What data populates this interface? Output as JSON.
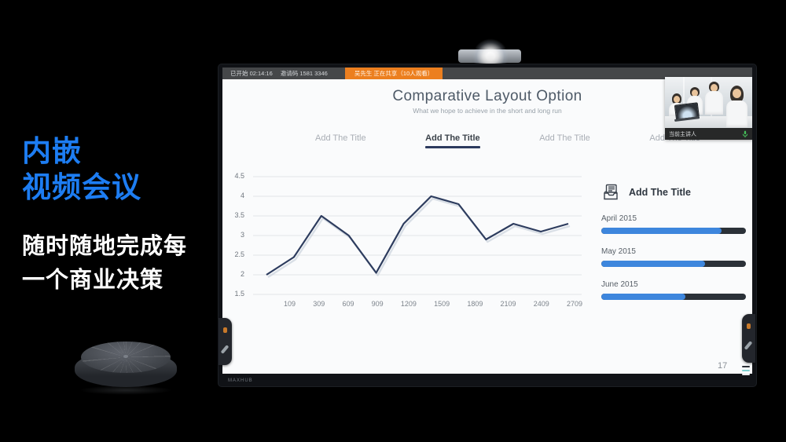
{
  "page": {
    "headline": [
      "内嵌",
      "视频会议"
    ],
    "subline": [
      "随时随地完成每",
      "一个商业决策"
    ],
    "headline_color": "#1d7df2"
  },
  "device": {
    "brand_logo": "MAXHUB",
    "page_number": "17"
  },
  "meeting_bar": {
    "started": "已开始 02:14:16",
    "invite_code": "邀请码 1581 3346",
    "sharing_badge": "吴先生 正在共享（10人观看）",
    "badge_color": "#ec7f1f"
  },
  "presenter_thumbnail": {
    "caption": "当前主讲人",
    "mic_icon": "green-mic-icon"
  },
  "slide": {
    "title": "Comparative Layout Option",
    "subtitle": "What we hope to achieve in the short and long run",
    "tabs": [
      {
        "label": "Add The Title",
        "active": false
      },
      {
        "label": "Add The Title",
        "active": true
      },
      {
        "label": "Add The Title",
        "active": false
      },
      {
        "label": "Add The Title",
        "active": false
      }
    ],
    "panel": {
      "heading": "Add The Title",
      "icon": "document-tray-icon",
      "bars": [
        {
          "label": "April 2015",
          "percent": 83
        },
        {
          "label": "May 2015",
          "percent": 72
        },
        {
          "label": "June 2015",
          "percent": 58
        }
      ],
      "bar_blue": "#3d86dd",
      "bar_dark": "#2b3138"
    }
  },
  "chart_data": {
    "type": "line",
    "title": "",
    "xlabel": "",
    "ylabel": "",
    "x_tick_labels": [
      "109",
      "309",
      "609",
      "909",
      "1209",
      "1509",
      "1809",
      "2109",
      "2409",
      "2709"
    ],
    "values": [
      2.0,
      2.45,
      3.5,
      3.0,
      2.05,
      3.3,
      4.0,
      3.8,
      2.9,
      3.3,
      3.1,
      3.3
    ],
    "y_ticks": [
      1.5,
      2,
      2.5,
      3,
      3.5,
      4,
      4.5
    ],
    "ylim": [
      1.5,
      4.5
    ],
    "grid": true,
    "legend": false,
    "line_color": "#2d3c5e"
  }
}
